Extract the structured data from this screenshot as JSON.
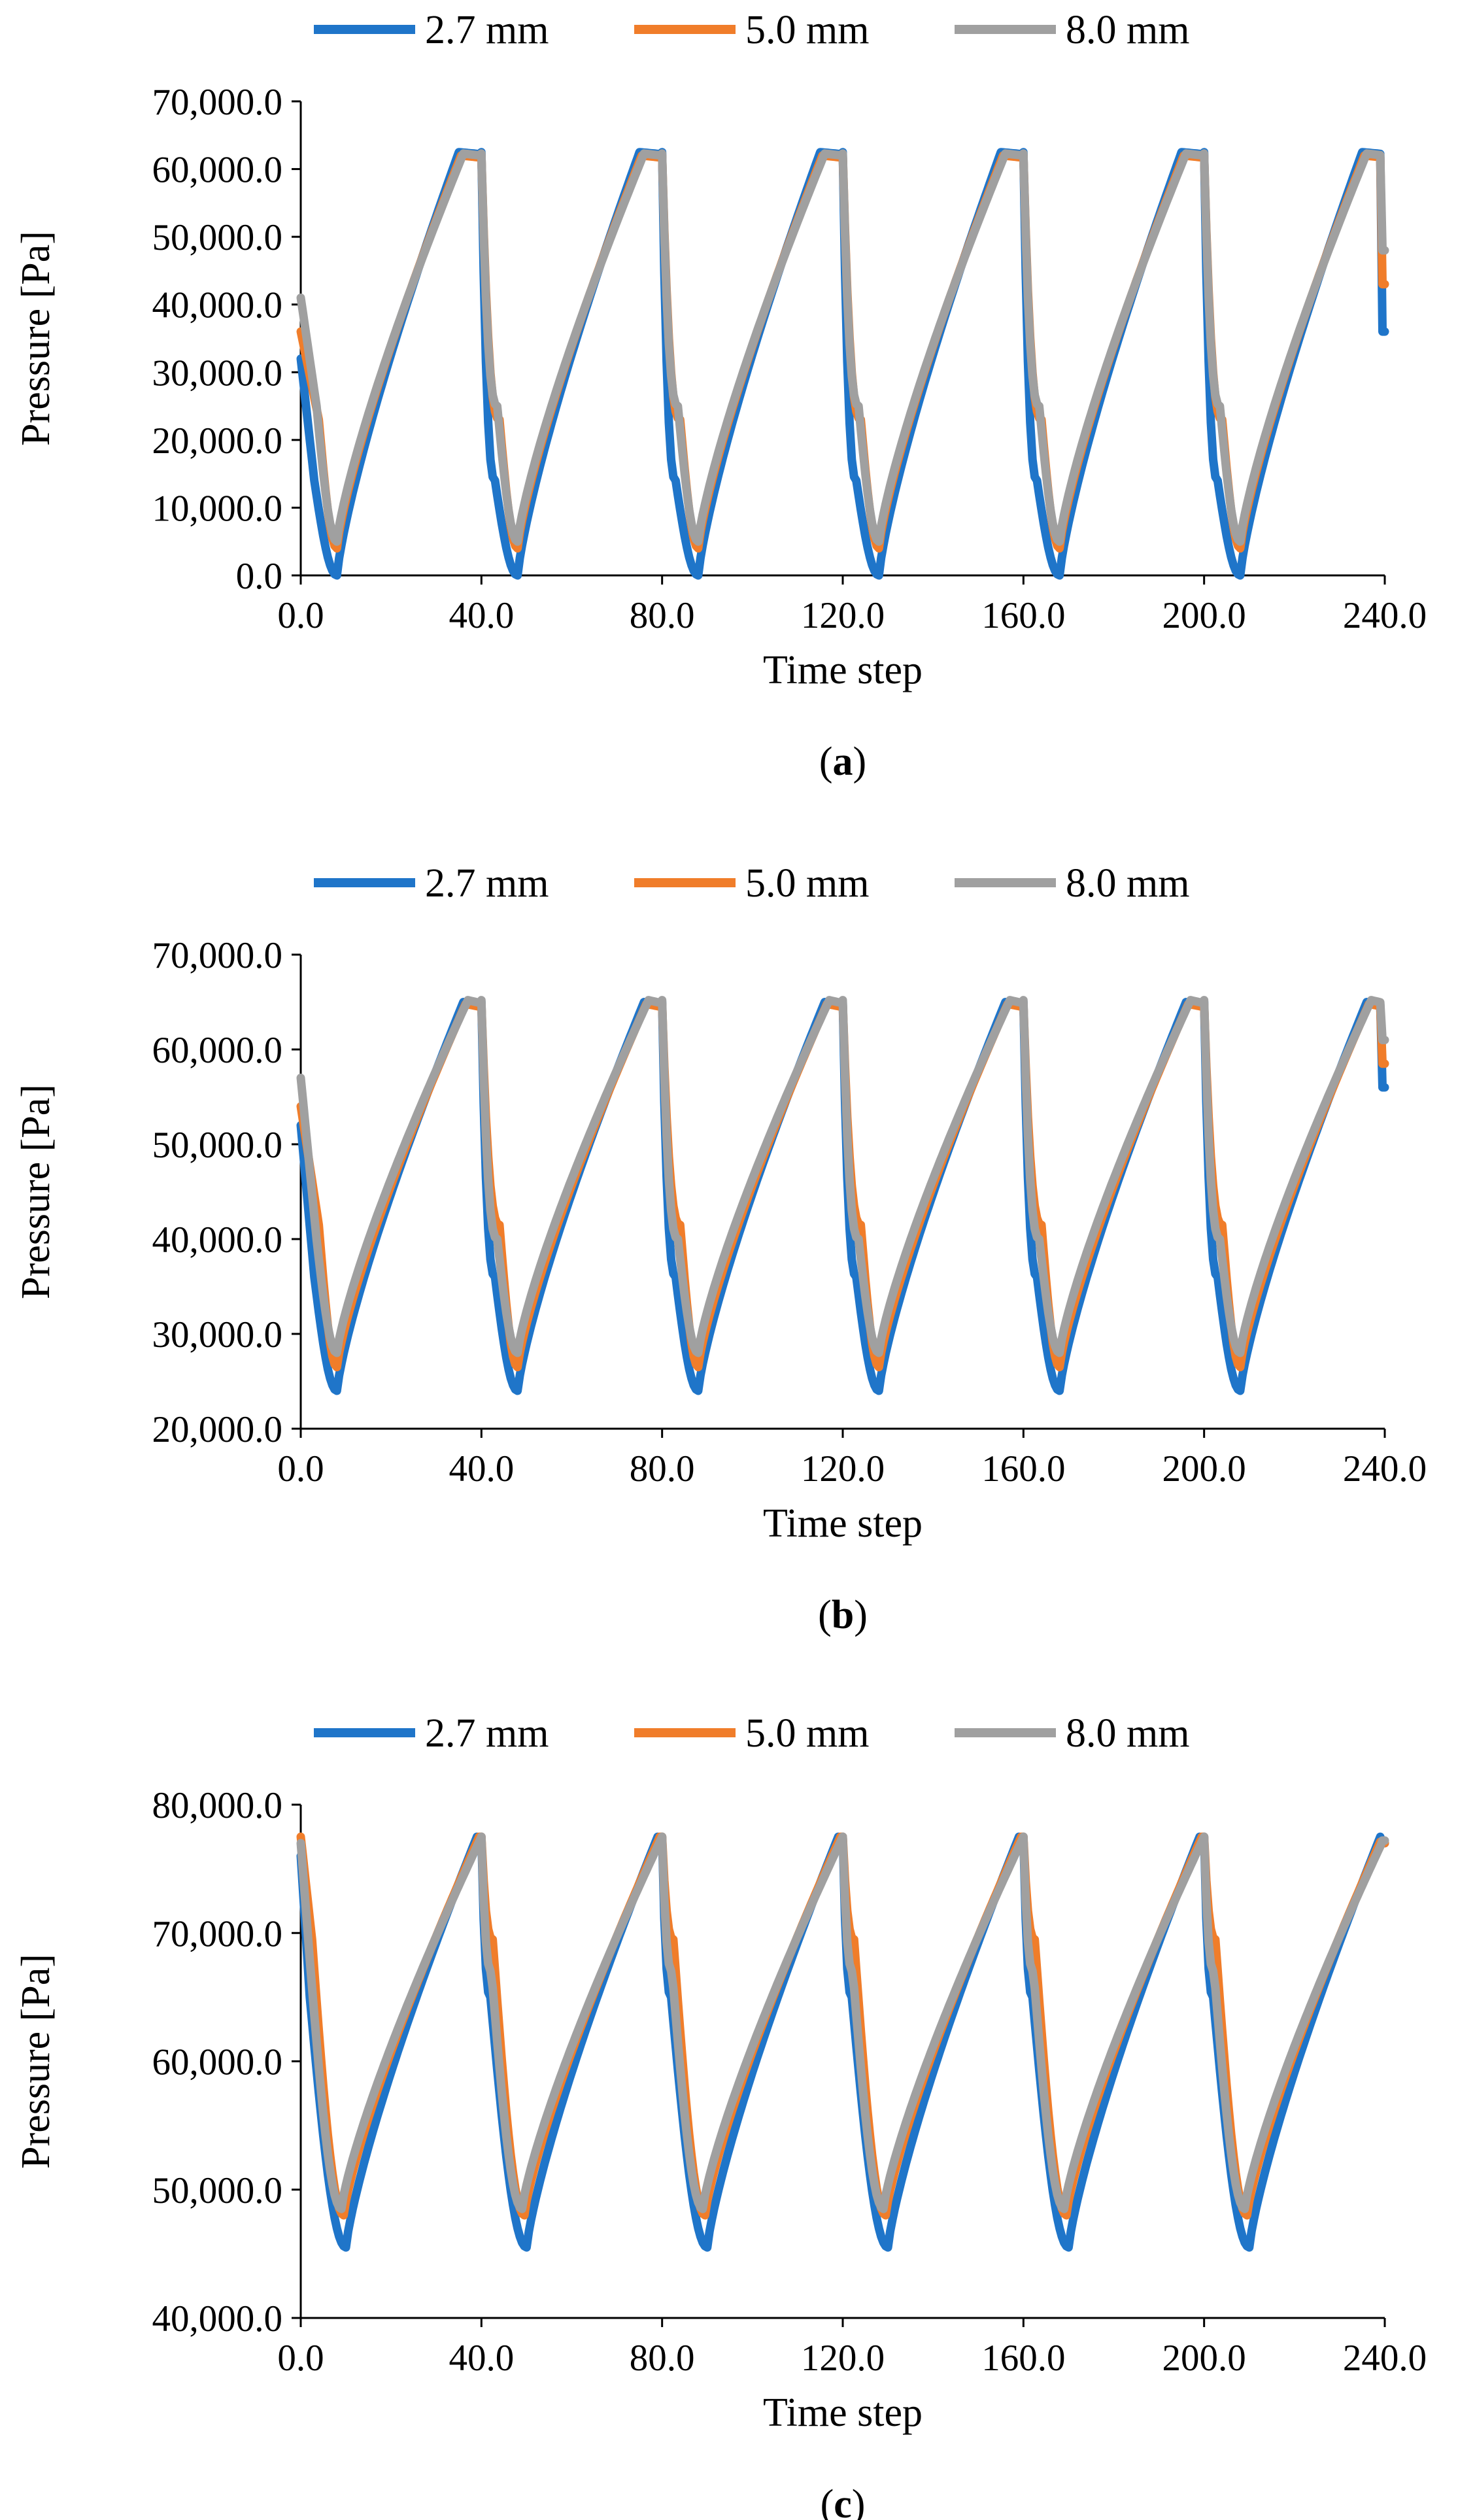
{
  "colors": {
    "blue": "#1f75c9",
    "orange": "#f07d2a",
    "gray": "#a0a0a0"
  },
  "chart_data": [
    {
      "type": "line",
      "caption": "a",
      "xlabel": "Time step",
      "ylabel": "Pressure [Pa]",
      "xlim": [
        0,
        240
      ],
      "ylim": [
        0,
        70000
      ],
      "xticks": [
        "0.0",
        "40.0",
        "80.0",
        "120.0",
        "160.0",
        "200.0",
        "240.0"
      ],
      "yticks": [
        "0.0",
        "10,000.0",
        "20,000.0",
        "30,000.0",
        "40,000.0",
        "50,000.0",
        "60,000.0",
        "70,000.0"
      ],
      "period": 40,
      "legend": [
        "2.7 mm",
        "5.0 mm",
        "8.0 mm"
      ],
      "series": [
        {
          "name": "2.7 mm",
          "color": "#1f75c9",
          "peak_time": 35,
          "peak": 62500,
          "trough_time": 8,
          "trough": 0,
          "step_time": 3,
          "step_level": 14000,
          "start_value": 32000,
          "end_value": 36000
        },
        {
          "name": "5.0 mm",
          "color": "#f07d2a",
          "peak_time": 35.5,
          "peak": 62000,
          "trough_time": 8,
          "trough": 4000,
          "step_time": 4,
          "step_level": 23000,
          "start_value": 36000,
          "end_value": 43000
        },
        {
          "name": "8.0 mm",
          "color": "#a0a0a0",
          "peak_time": 36,
          "peak": 62300,
          "trough_time": 8,
          "trough": 5000,
          "step_time": 3.5,
          "step_level": 25000,
          "start_value": 41000,
          "end_value": 48000
        }
      ]
    },
    {
      "type": "line",
      "caption": "b",
      "xlabel": "Time step",
      "ylabel": "Pressure [Pa]",
      "xlim": [
        0,
        240
      ],
      "ylim": [
        20000,
        70000
      ],
      "xticks": [
        "0.0",
        "40.0",
        "80.0",
        "120.0",
        "160.0",
        "200.0",
        "240.0"
      ],
      "yticks": [
        "20,000.0",
        "30,000.0",
        "40,000.0",
        "50,000.0",
        "60,000.0",
        "70,000.0"
      ],
      "period": 40,
      "legend": [
        "2.7 mm",
        "5.0 mm",
        "8.0 mm"
      ],
      "series": [
        {
          "name": "2.7 mm",
          "color": "#1f75c9",
          "peak_time": 36,
          "peak": 65000,
          "trough_time": 8,
          "trough": 24000,
          "step_time": 3,
          "step_level": 36000,
          "start_value": 52000,
          "end_value": 56000
        },
        {
          "name": "5.0 mm",
          "color": "#f07d2a",
          "peak_time": 36.5,
          "peak": 64800,
          "trough_time": 8,
          "trough": 26500,
          "step_time": 4,
          "step_level": 41500,
          "start_value": 54000,
          "end_value": 58500
        },
        {
          "name": "8.0 mm",
          "color": "#a0a0a0",
          "peak_time": 37,
          "peak": 65200,
          "trough_time": 8,
          "trough": 28000,
          "step_time": 3.5,
          "step_level": 40000,
          "start_value": 57000,
          "end_value": 61000
        }
      ]
    },
    {
      "type": "line",
      "caption": "c",
      "xlabel": "Time step",
      "ylabel": "Pressure [Pa]",
      "xlim": [
        0,
        240
      ],
      "ylim": [
        40000,
        80000
      ],
      "xticks": [
        "0.0",
        "40.0",
        "80.0",
        "120.0",
        "160.0",
        "200.0",
        "240.0"
      ],
      "yticks": [
        "40,000.0",
        "50,000.0",
        "60,000.0",
        "70,000.0",
        "80,000.0"
      ],
      "period": 40,
      "legend": [
        "2.7 mm",
        "5.0 mm",
        "8.0 mm"
      ],
      "series": [
        {
          "name": "2.7 mm",
          "color": "#1f75c9",
          "peak_time": 39,
          "peak": 77500,
          "trough_time": 10,
          "trough": 45500,
          "step_time": 2,
          "step_level": 65000,
          "start_value": 76000,
          "end_value": 77000
        },
        {
          "name": "5.0 mm",
          "color": "#f07d2a",
          "peak_time": 39.5,
          "peak": 77500,
          "trough_time": 9.5,
          "trough": 48000,
          "step_time": 2.5,
          "step_level": 69500,
          "start_value": 77500,
          "end_value": 77000
        },
        {
          "name": "8.0 mm",
          "color": "#a0a0a0",
          "peak_time": 40,
          "peak": 77500,
          "trough_time": 9,
          "trough": 48500,
          "step_time": 2.2,
          "step_level": 67000,
          "start_value": 77000,
          "end_value": 77200
        }
      ]
    }
  ]
}
